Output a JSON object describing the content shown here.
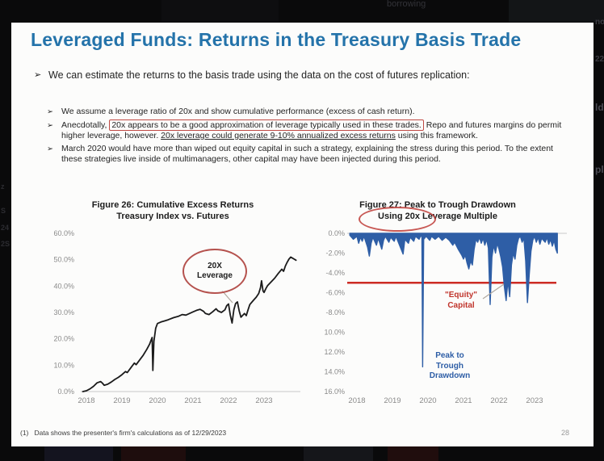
{
  "frame": {
    "top_text": "borrowing",
    "left_fragments": [
      "z",
      "S",
      "24",
      "2S"
    ],
    "right_fragments": [
      "no",
      "22",
      "ld",
      "pl"
    ]
  },
  "slide": {
    "title": "Leveraged Funds: Returns in the Treasury Basis Trade",
    "bullet_glyph": "➢",
    "main_bullet": "We can estimate the returns to the basis trade using the data on the cost of futures replication:",
    "sub_bullets": [
      {
        "segments": [
          {
            "text": "We assume a leverage ratio of 20x and show cumulative performance (excess of cash return)."
          }
        ]
      },
      {
        "segments": [
          {
            "text": "Anecdotally, "
          },
          {
            "text": "20x appears to be a good approximation of leverage typically used in these trades.",
            "style": "box"
          },
          {
            "text": " Repo and futures margins do permit higher leverage, however. "
          },
          {
            "text": "20x leverage could generate 9-10% annualized excess returns",
            "style": "underline"
          },
          {
            "text": " using this framework."
          }
        ]
      },
      {
        "segments": [
          {
            "text": "March 2020 would have more than wiped out equity capital in such a strategy, explaining the stress during this period. To the extent these strategies live inside of multimanagers, other capital may have been injected during this period."
          }
        ]
      }
    ],
    "footnote": "(1)   Data shows the presenter's firm's calculations as of 12/29/2023",
    "page_number": "28"
  },
  "chart_data": [
    {
      "type": "line",
      "title_lines": [
        "Figure 26: Cumulative Excess Returns",
        "Treasury Index vs. Futures"
      ],
      "x_ticks": [
        2018,
        2019,
        2020,
        2021,
        2022,
        2023
      ],
      "y_ticks": [
        60,
        50,
        40,
        30,
        20,
        10,
        0
      ],
      "ylim": [
        0,
        60
      ],
      "xlim": [
        2017.9,
        2024.0
      ],
      "color": "#1b1b1b",
      "baseline": "bottom",
      "grid": false,
      "annotation": {
        "lines": [
          "20X",
          "Leverage"
        ],
        "ellipse_color": "#b5524e"
      },
      "plot": {
        "x0": 63,
        "xstep": 44,
        "year0": 2018,
        "ytop": 11,
        "h": 196,
        "gx1": 56,
        "gx2": 328
      },
      "leaders": [
        [
          231,
          82,
          244,
          97
        ]
      ],
      "series": [
        [
          2017.9,
          0.0
        ],
        [
          2018.0,
          0.3
        ],
        [
          2018.1,
          1.0
        ],
        [
          2018.2,
          2.0
        ],
        [
          2018.3,
          3.3
        ],
        [
          2018.4,
          3.8
        ],
        [
          2018.45,
          3.2
        ],
        [
          2018.5,
          2.4
        ],
        [
          2018.6,
          2.8
        ],
        [
          2018.7,
          3.6
        ],
        [
          2018.8,
          4.6
        ],
        [
          2018.9,
          5.4
        ],
        [
          2019.0,
          6.4
        ],
        [
          2019.1,
          7.6
        ],
        [
          2019.15,
          7.2
        ],
        [
          2019.25,
          9.0
        ],
        [
          2019.35,
          10.8
        ],
        [
          2019.4,
          10.2
        ],
        [
          2019.5,
          12.0
        ],
        [
          2019.6,
          13.8
        ],
        [
          2019.7,
          16.0
        ],
        [
          2019.78,
          18.0
        ],
        [
          2019.82,
          19.5
        ],
        [
          2019.85,
          20.5
        ],
        [
          2019.87,
          8.0
        ],
        [
          2019.9,
          19.0
        ],
        [
          2019.95,
          24.0
        ],
        [
          2020.0,
          25.8
        ],
        [
          2020.1,
          26.4
        ],
        [
          2020.2,
          26.8
        ],
        [
          2020.3,
          27.2
        ],
        [
          2020.45,
          28.0
        ],
        [
          2020.6,
          28.6
        ],
        [
          2020.7,
          29.2
        ],
        [
          2020.8,
          29.0
        ],
        [
          2020.9,
          29.6
        ],
        [
          2021.0,
          30.2
        ],
        [
          2021.1,
          30.8
        ],
        [
          2021.2,
          31.2
        ],
        [
          2021.3,
          30.4
        ],
        [
          2021.35,
          29.6
        ],
        [
          2021.45,
          29.2
        ],
        [
          2021.55,
          30.2
        ],
        [
          2021.65,
          31.4
        ],
        [
          2021.7,
          30.6
        ],
        [
          2021.8,
          30.0
        ],
        [
          2021.9,
          31.0
        ],
        [
          2021.95,
          32.6
        ],
        [
          2022.0,
          33.2
        ],
        [
          2022.05,
          29.0
        ],
        [
          2022.1,
          26.0
        ],
        [
          2022.15,
          31.0
        ],
        [
          2022.2,
          33.4
        ],
        [
          2022.25,
          34.0
        ],
        [
          2022.3,
          30.6
        ],
        [
          2022.35,
          28.2
        ],
        [
          2022.45,
          29.6
        ],
        [
          2022.5,
          28.8
        ],
        [
          2022.55,
          31.0
        ],
        [
          2022.6,
          33.0
        ],
        [
          2022.7,
          34.6
        ],
        [
          2022.78,
          35.8
        ],
        [
          2022.85,
          37.2
        ],
        [
          2022.9,
          39.4
        ],
        [
          2022.93,
          42.0
        ],
        [
          2022.97,
          38.2
        ],
        [
          2023.0,
          37.6
        ],
        [
          2023.05,
          39.0
        ],
        [
          2023.1,
          40.2
        ],
        [
          2023.2,
          41.6
        ],
        [
          2023.3,
          43.0
        ],
        [
          2023.4,
          44.8
        ],
        [
          2023.5,
          46.4
        ],
        [
          2023.55,
          45.6
        ],
        [
          2023.6,
          47.6
        ],
        [
          2023.65,
          49.0
        ],
        [
          2023.7,
          50.2
        ],
        [
          2023.75,
          51.0
        ],
        [
          2023.8,
          50.6
        ],
        [
          2023.85,
          50.2
        ],
        [
          2023.9,
          49.8
        ]
      ]
    },
    {
      "type": "area",
      "title_lines": [
        "Figure 27: Peak to Trough Drawdown",
        "Using 20x Leverage Multiple"
      ],
      "circled_phrase": "Using 20x",
      "x_ticks": [
        2018,
        2019,
        2020,
        2021,
        2022,
        2023
      ],
      "y_ticks": [
        0,
        -2,
        -4,
        -6,
        -8,
        -10,
        -12,
        -14,
        -16
      ],
      "ylim": [
        -16,
        0
      ],
      "xlim": [
        2017.8,
        2024.0
      ],
      "color": "#2e5ea6",
      "baseline": "top",
      "grid": false,
      "hline": {
        "value": -5.0,
        "color": "#cc2c24",
        "x1": 28,
        "x2": 287,
        "label_lines": [
          "\"Equity\"",
          "Capital"
        ]
      },
      "annotation2": {
        "lines": [
          "Peak to",
          "Trough",
          "Drawdown"
        ],
        "color": "#2e5ea6"
      },
      "plot": {
        "x0": 40,
        "xstep": 44,
        "year0": 2018,
        "ytop": 11,
        "h": 196,
        "gx1": 28,
        "gx2": 300
      },
      "leaders": [
        [
          196,
          92,
          222,
          74
        ]
      ],
      "series": [
        [
          2017.8,
          -0.2
        ],
        [
          2017.9,
          -0.6
        ],
        [
          2018.0,
          -0.3
        ],
        [
          2018.05,
          -1.0
        ],
        [
          2018.1,
          -0.4
        ],
        [
          2018.15,
          -0.8
        ],
        [
          2018.2,
          -0.3
        ],
        [
          2018.3,
          -1.4
        ],
        [
          2018.35,
          -2.3
        ],
        [
          2018.4,
          -1.0
        ],
        [
          2018.45,
          -0.4
        ],
        [
          2018.55,
          -1.2
        ],
        [
          2018.6,
          -0.5
        ],
        [
          2018.7,
          -1.6
        ],
        [
          2018.75,
          -0.7
        ],
        [
          2018.8,
          -0.3
        ],
        [
          2018.9,
          -0.9
        ],
        [
          2018.95,
          -0.4
        ],
        [
          2019.05,
          -0.8
        ],
        [
          2019.1,
          -0.3
        ],
        [
          2019.2,
          -1.2
        ],
        [
          2019.3,
          -2.1
        ],
        [
          2019.35,
          -0.6
        ],
        [
          2019.45,
          -1.0
        ],
        [
          2019.5,
          -0.4
        ],
        [
          2019.6,
          -0.8
        ],
        [
          2019.65,
          -0.3
        ],
        [
          2019.75,
          -0.6
        ],
        [
          2019.8,
          -0.2
        ],
        [
          2019.83,
          -0.4
        ],
        [
          2019.85,
          -13.5
        ],
        [
          2019.88,
          -0.6
        ],
        [
          2019.95,
          -0.3
        ],
        [
          2020.05,
          -0.7
        ],
        [
          2020.1,
          -0.3
        ],
        [
          2020.2,
          -0.6
        ],
        [
          2020.3,
          -0.3
        ],
        [
          2020.4,
          -0.7
        ],
        [
          2020.5,
          -0.4
        ],
        [
          2020.6,
          -0.7
        ],
        [
          2020.7,
          -1.2
        ],
        [
          2020.75,
          -0.9
        ],
        [
          2020.85,
          -1.6
        ],
        [
          2020.95,
          -2.2
        ],
        [
          2021.0,
          -2.6
        ],
        [
          2021.05,
          -2.2
        ],
        [
          2021.1,
          -3.0
        ],
        [
          2021.15,
          -3.6
        ],
        [
          2021.2,
          -2.8
        ],
        [
          2021.25,
          -3.2
        ],
        [
          2021.3,
          -1.6
        ],
        [
          2021.35,
          -0.6
        ],
        [
          2021.4,
          -0.9
        ],
        [
          2021.45,
          -0.4
        ],
        [
          2021.5,
          -1.0
        ],
        [
          2021.55,
          -0.5
        ],
        [
          2021.6,
          -1.2
        ],
        [
          2021.65,
          -0.6
        ],
        [
          2021.7,
          -1.5
        ],
        [
          2021.75,
          -7.2
        ],
        [
          2021.8,
          -2.4
        ],
        [
          2021.85,
          -1.2
        ],
        [
          2021.9,
          -2.0
        ],
        [
          2021.95,
          -1.0
        ],
        [
          2022.0,
          -1.6
        ],
        [
          2022.05,
          -2.4
        ],
        [
          2022.1,
          -3.4
        ],
        [
          2022.15,
          -5.4
        ],
        [
          2022.2,
          -6.8
        ],
        [
          2022.25,
          -4.8
        ],
        [
          2022.3,
          -6.4
        ],
        [
          2022.35,
          -3.2
        ],
        [
          2022.4,
          -2.0
        ],
        [
          2022.45,
          -2.6
        ],
        [
          2022.5,
          -1.2
        ],
        [
          2022.55,
          -0.5
        ],
        [
          2022.6,
          -0.3
        ],
        [
          2022.65,
          -0.9
        ],
        [
          2022.7,
          -0.5
        ],
        [
          2022.75,
          -2.8
        ],
        [
          2022.8,
          -7.0
        ],
        [
          2022.85,
          -4.2
        ],
        [
          2022.9,
          -1.8
        ],
        [
          2022.95,
          -0.7
        ],
        [
          2023.0,
          -0.3
        ],
        [
          2023.05,
          -0.9
        ],
        [
          2023.1,
          -0.4
        ],
        [
          2023.15,
          -1.1
        ],
        [
          2023.2,
          -0.5
        ],
        [
          2023.3,
          -0.9
        ],
        [
          2023.35,
          -0.4
        ],
        [
          2023.4,
          -1.1
        ],
        [
          2023.45,
          -0.6
        ],
        [
          2023.5,
          -1.3
        ],
        [
          2023.55,
          -0.7
        ],
        [
          2023.6,
          -1.6
        ],
        [
          2023.64,
          -2.0
        ]
      ]
    }
  ]
}
